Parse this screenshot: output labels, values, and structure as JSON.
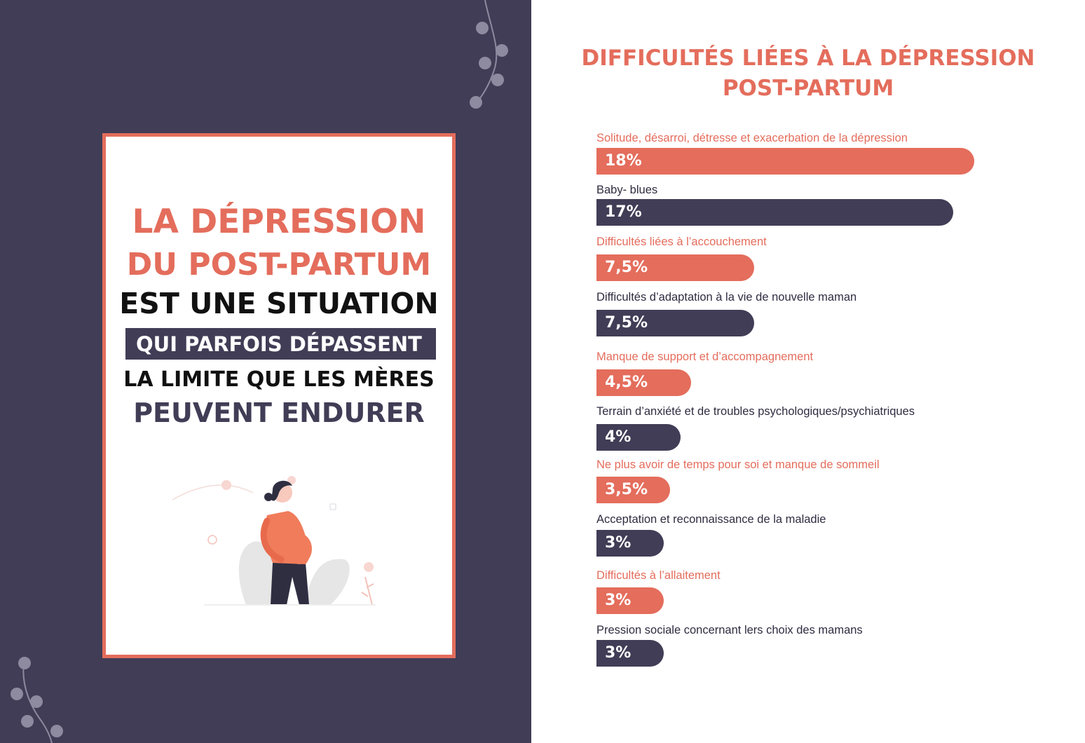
{
  "colors": {
    "navy": "#413d56",
    "coral": "#e46d5c",
    "white": "#ffffff"
  },
  "poster": {
    "line1": "LA DÉPRESSION",
    "line2": "DU POST-PARTUM",
    "line3": "EST UNE SITUATION",
    "line4": "QUI PARFOIS DÉPASSENT",
    "line5": "LA LIMITE QUE LES MÈRES",
    "line6": "PEUVENT ENDURER",
    "illustration_icon": "pregnant-woman-illustration"
  },
  "chart_data": {
    "type": "bar",
    "orientation": "horizontal",
    "title_line1": "DIFFICULTÉS LIÉES À LA DÉPRESSION",
    "title_line2": "POST-PARTUM",
    "categories": [
      "Solitude, désarroi, détresse et exacerbation de la dépression",
      "Baby- blues",
      "Difficultés liées à l’accouchement",
      "Difficultés d’adaptation à la vie de nouvelle maman",
      "Manque de support et d’accompagnement",
      "Terrain d’anxiété et de troubles psychologiques/psychiatriques",
      "Ne plus avoir de temps pour soi et manque de sommeil",
      "Acceptation et reconnaissance de la maladie",
      "Difficultés à l’allaitement",
      "Pression sociale concernant lers choix des mamans"
    ],
    "values": [
      18,
      17,
      7.5,
      7.5,
      4.5,
      4,
      3.5,
      3,
      3,
      3
    ],
    "value_labels": [
      "18%",
      "17%",
      "7,5%",
      "7,5%",
      "4,5%",
      "4%",
      "3,5%",
      "3%",
      "3%",
      "3%"
    ],
    "bar_colors": [
      "#e46d5c",
      "#413d56",
      "#e46d5c",
      "#413d56",
      "#e46d5c",
      "#413d56",
      "#e46d5c",
      "#413d56",
      "#e46d5c",
      "#413d56"
    ],
    "xlim": [
      0,
      18
    ]
  }
}
